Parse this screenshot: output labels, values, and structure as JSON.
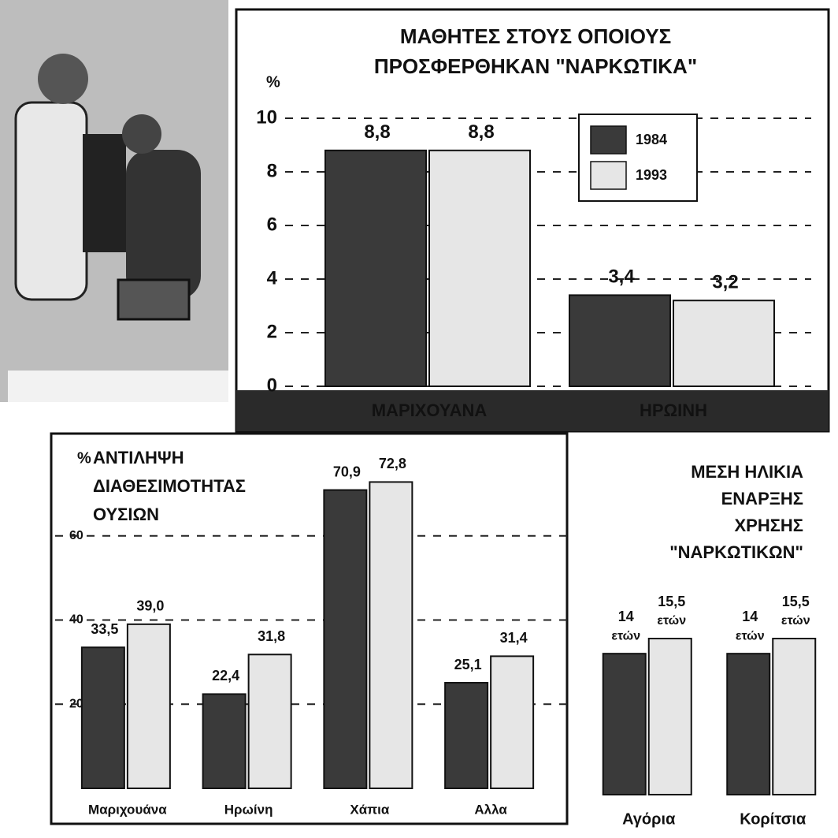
{
  "chart_data": [
    {
      "type": "bar",
      "title": [
        "ΜΑΘΗΤΕΣ ΣΤΟΥΣ ΟΠΟΙΟΥΣ",
        "ΠΡΟΣΦΕΡΘΗΚΑΝ \"ΝΑΡΚΩΤΙΚΑ\""
      ],
      "y_label": "%",
      "categories": [
        "ΜΑΡΙΧΟΥΑΝΑ",
        "ΗΡΩΙΝΗ"
      ],
      "series": [
        {
          "name": "1984",
          "color": "#3a3a3a",
          "values": [
            8.8,
            3.4
          ],
          "value_labels": [
            "8,8",
            "3,4"
          ]
        },
        {
          "name": "1993",
          "color": "#e6e6e6",
          "values": [
            8.8,
            3.2
          ],
          "value_labels": [
            "8,8",
            "3,2"
          ]
        }
      ],
      "ylim": [
        0,
        10
      ],
      "yticks": [
        0,
        2,
        4,
        6,
        8,
        10
      ],
      "grid": true,
      "legend": "upper right"
    },
    {
      "type": "bar",
      "title": [
        "ΑΝΤΙΛΗΨΗ",
        "ΔΙΑΘΕΣΙΜΟΤΗΤΑΣ",
        "ΟΥΣΙΩΝ"
      ],
      "y_label": "%",
      "categories": [
        "Μαριχουάνα",
        "Ηρωίνη",
        "Χάπια",
        "Αλλα"
      ],
      "series": [
        {
          "color": "#3a3a3a",
          "values": [
            33.5,
            22.4,
            70.9,
            25.1
          ],
          "value_labels": [
            "33,5",
            "22,4",
            "70,9",
            "25,1"
          ]
        },
        {
          "color": "#e6e6e6",
          "values": [
            39.0,
            31.8,
            72.8,
            31.4
          ],
          "value_labels": [
            "39,0",
            "31,8",
            "72,8",
            "31,4"
          ]
        }
      ],
      "ylim": [
        0,
        80
      ],
      "yticks": [
        20,
        40,
        60
      ],
      "grid": true
    },
    {
      "type": "bar",
      "title": [
        "ΜΕΣΗ ΗΛΙΚΙΑ",
        "ΕΝΑΡΞΗΣ",
        "ΧΡΗΣΗΣ",
        "\"ΝΑΡΚΩΤΙΚΩΝ\""
      ],
      "categories": [
        "Αγόρια",
        "Κορίτσια"
      ],
      "series": [
        {
          "color": "#3a3a3a",
          "values": [
            14,
            14
          ],
          "value_labels": [
            "14",
            "14"
          ]
        },
        {
          "color": "#e6e6e6",
          "values": [
            15.5,
            15.5
          ],
          "value_labels": [
            "15,5",
            "15,5"
          ]
        }
      ],
      "value_unit": "ετών"
    }
  ]
}
